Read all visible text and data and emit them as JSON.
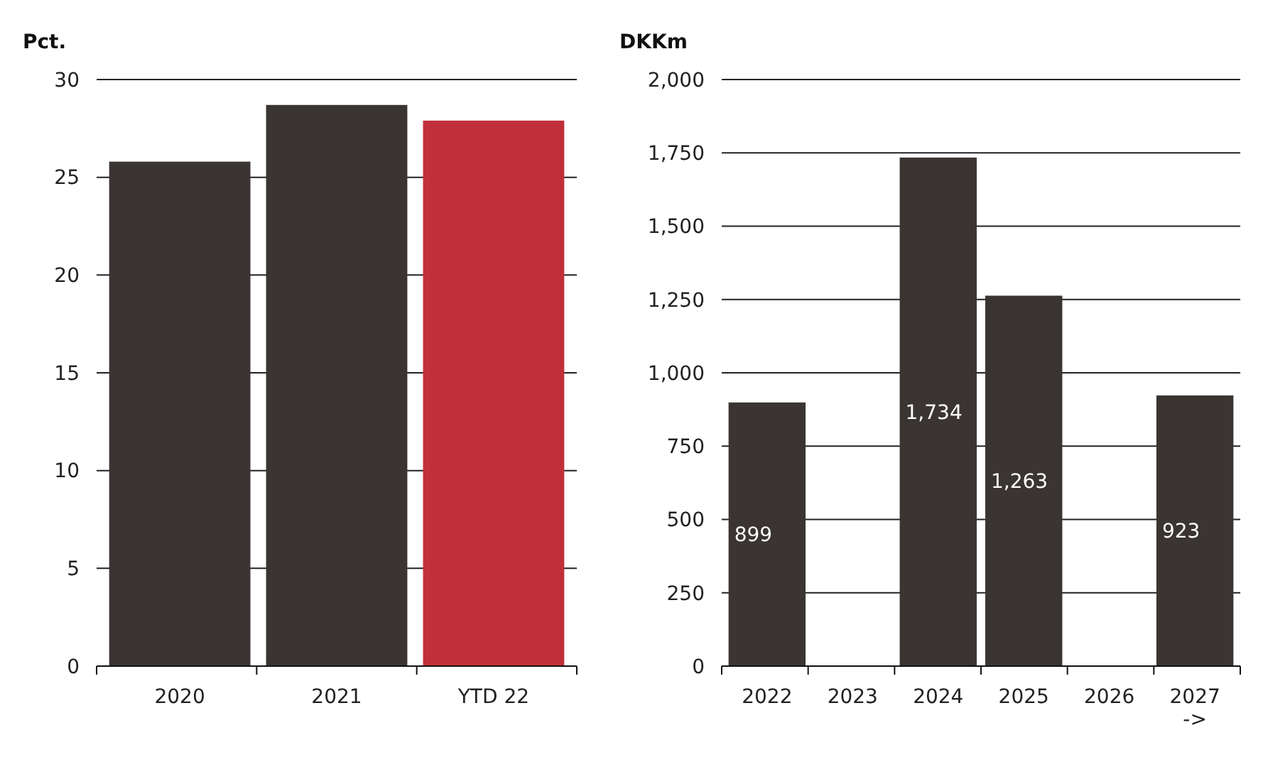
{
  "chart_data": [
    {
      "type": "bar",
      "ylabel": "Pct.",
      "categories": [
        "2020",
        "2021",
        "YTD 22"
      ],
      "colors": [
        "#3a3532",
        "#3a3532",
        "#c0303a"
      ],
      "values": [
        25.8,
        28.7,
        27.9
      ],
      "ylim": [
        0,
        30
      ],
      "yticks": [
        0,
        5,
        10,
        15,
        20,
        25,
        30
      ],
      "grid": "y"
    },
    {
      "type": "bar",
      "ylabel": "DKKm",
      "categories": [
        "2022",
        "2023",
        "2024",
        "2025",
        "2026",
        "2027\n->"
      ],
      "color": "#3a3532",
      "values": [
        899,
        null,
        1734,
        1263,
        null,
        923
      ],
      "value_labels": [
        "899",
        null,
        "1,734",
        "1,263",
        null,
        "923"
      ],
      "ylim": [
        0,
        2000
      ],
      "yticks": [
        {
          "value": 0,
          "label": "0"
        },
        {
          "value": 250,
          "label": "250"
        },
        {
          "value": 500,
          "label": "500"
        },
        {
          "value": 750,
          "label": "750"
        },
        {
          "value": 1000,
          "label": "1,000"
        },
        {
          "value": 1250,
          "label": "1,250"
        },
        {
          "value": 1500,
          "label": "1,500"
        },
        {
          "value": 1750,
          "label": "1,750"
        },
        {
          "value": 2000,
          "label": "2,000"
        }
      ],
      "grid": "y"
    }
  ]
}
